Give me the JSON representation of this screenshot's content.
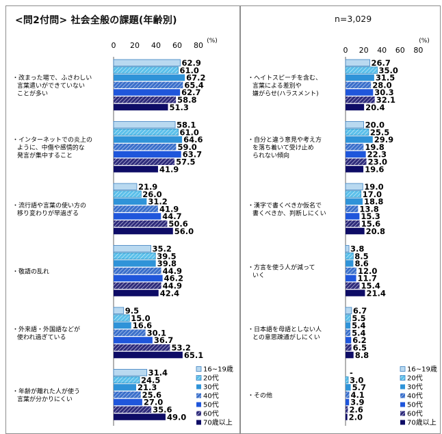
{
  "title": "<問2付問> 社会全般の課題(年齢別)",
  "n_label": "n=3,029",
  "unit": "(%)",
  "colors": [
    "#b9d9f0",
    "#5cc0ea",
    "#2f93d8",
    "#3b6fca",
    "#1f56db",
    "#2e2b7a",
    "#0e0c66"
  ],
  "chart_data": {
    "type": "bar",
    "orientation": "horizontal",
    "title": "<問2付問> 社会全般の課題(年齢別)",
    "xlim": [
      0,
      80
    ],
    "ticks": [
      "0",
      "20",
      "40",
      "60",
      "80"
    ],
    "unit": "(%)",
    "legend": [
      "16~19歳",
      "20代",
      "30代",
      "40代",
      "50代",
      "60代",
      "70歳以上"
    ],
    "legend_position": "bottom-right",
    "categories": [
      {
        "label": [
          "改まった場で、ふさわしい",
          "言葉遣いができていない",
          "ことが多い"
        ],
        "values": [
          62.9,
          61.0,
          67.2,
          65.4,
          62.7,
          58.8,
          51.3
        ]
      },
      {
        "label": [
          "インターネットでの炎上の",
          "ように、中傷や感情的な",
          "発言が集中すること"
        ],
        "values": [
          58.1,
          61.0,
          64.6,
          59.0,
          63.7,
          57.5,
          41.9
        ]
      },
      {
        "label": [
          "流行語や言葉の使い方の",
          "移り変わりが早過ぎる"
        ],
        "values": [
          21.9,
          26.0,
          31.2,
          41.9,
          44.7,
          50.6,
          56.0
        ]
      },
      {
        "label": [
          "敬語の乱れ"
        ],
        "values": [
          35.2,
          39.5,
          39.8,
          44.9,
          46.2,
          44.9,
          42.4
        ]
      },
      {
        "label": [
          "外来語・外国語などが",
          "使われ過ぎている"
        ],
        "values": [
          9.5,
          15.0,
          16.6,
          30.1,
          36.7,
          53.2,
          65.1
        ]
      },
      {
        "label": [
          "年齢が離れた人が使う",
          "言葉が分かりにくい"
        ],
        "values": [
          31.4,
          24.5,
          21.3,
          25.6,
          27.0,
          35.6,
          49.0
        ]
      },
      {
        "label": [
          "ヘイトスピーチを含む、",
          "言葉による差別や",
          "嫌がらせ(ハラスメント)"
        ],
        "values": [
          26.7,
          35.0,
          31.5,
          28.0,
          30.3,
          32.1,
          20.4
        ]
      },
      {
        "label": [
          "自分と違う意見や考え方",
          "を落ち着いて受け止め",
          "られない傾向"
        ],
        "values": [
          20.0,
          25.5,
          29.9,
          19.8,
          22.3,
          23.0,
          19.6
        ]
      },
      {
        "label": [
          "漢字で書くべきか仮名で",
          "書くべきか、判断しにくい"
        ],
        "values": [
          19.0,
          17.0,
          18.8,
          13.8,
          15.3,
          15.6,
          20.8
        ]
      },
      {
        "label": [
          "方言を使う人が減って",
          "いく"
        ],
        "values": [
          3.8,
          8.5,
          8.6,
          12.0,
          11.7,
          15.4,
          21.4
        ]
      },
      {
        "label": [
          "日本語を母語としない人",
          "との意思疎通がしにくい"
        ],
        "values": [
          6.7,
          5.5,
          5.4,
          5.4,
          6.2,
          6.5,
          8.8
        ]
      },
      {
        "label": [
          "その他"
        ],
        "values": [
          null,
          3.0,
          5.7,
          4.1,
          3.9,
          2.6,
          2.0
        ],
        "value_labels": [
          "-",
          "3.0",
          "5.7",
          "4.1",
          "3.9",
          "2.6",
          "2.0"
        ]
      }
    ]
  }
}
